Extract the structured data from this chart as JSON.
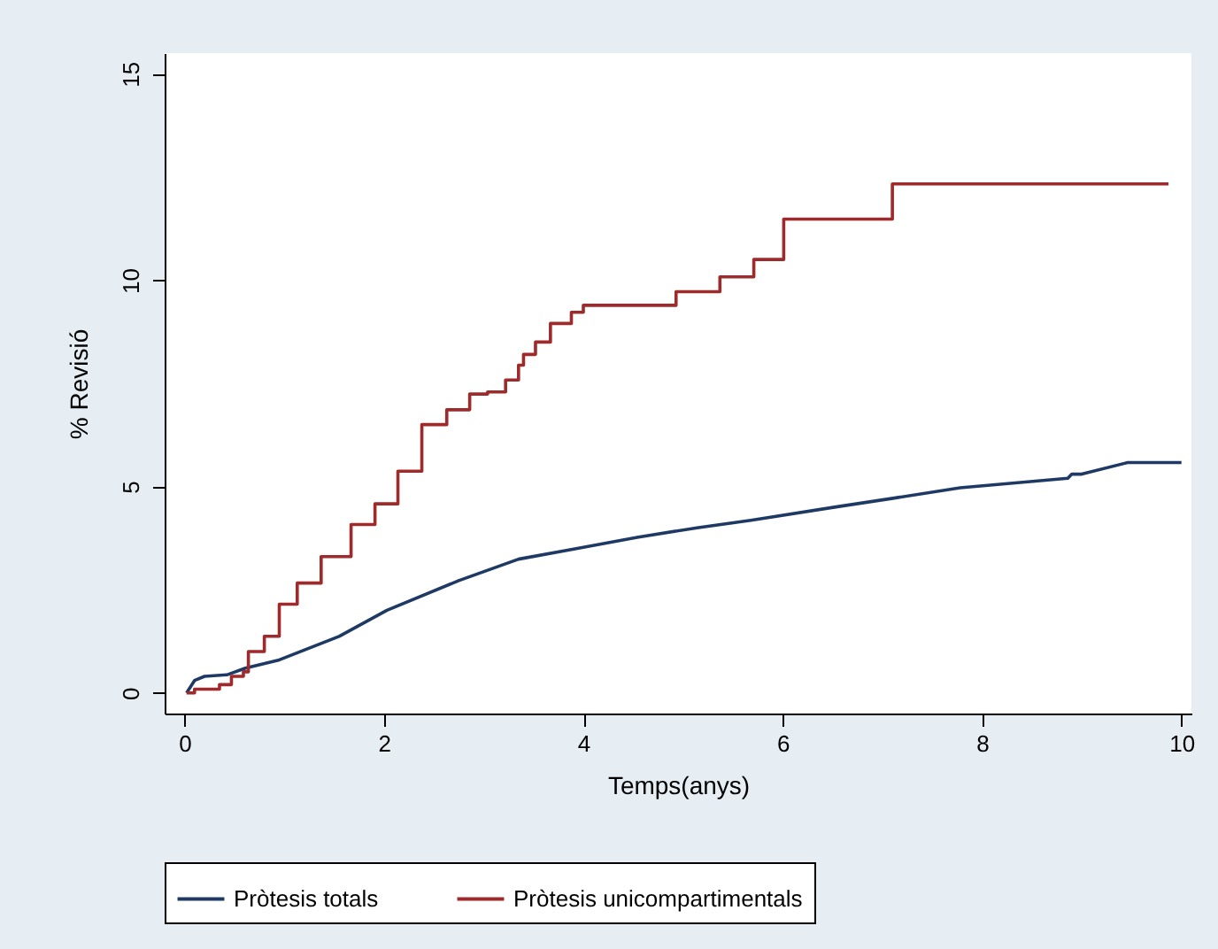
{
  "chart_data": {
    "type": "step",
    "xlabel": "Temps(anys)",
    "ylabel": "% Revisió",
    "xlim": [
      -0.2,
      10.1
    ],
    "ylim": [
      -0.5,
      15.5
    ],
    "xticks": [
      0,
      2,
      4,
      6,
      8,
      10
    ],
    "yticks": [
      0,
      5,
      10,
      15
    ],
    "grid": false,
    "legend": "bottom",
    "line_style": "solid",
    "marker": "none",
    "series": [
      {
        "name": "Pròtesis totals",
        "type": "line",
        "color": "#1e3a64",
        "x": [
          0.02,
          0.1,
          0.2,
          0.43,
          0.61,
          0.95,
          1.55,
          2.03,
          2.75,
          3.35,
          3.94,
          4.54,
          5.14,
          5.68,
          6.52,
          7.12,
          7.78,
          8.86,
          8.9,
          9.0,
          9.46,
          10.0
        ],
        "values": [
          0,
          0.3,
          0.4,
          0.44,
          0.6,
          0.8,
          1.37,
          2.0,
          2.72,
          3.24,
          3.5,
          3.77,
          4.0,
          4.18,
          4.5,
          4.72,
          4.97,
          5.2,
          5.3,
          5.3,
          5.58,
          5.58
        ]
      },
      {
        "name": "Pròtesis unicompartimentals",
        "color": "#9e2a2b",
        "x": [
          0.02,
          0.1,
          0.35,
          0.47,
          0.59,
          0.64,
          0.8,
          0.95,
          1.13,
          1.37,
          1.67,
          1.91,
          2.14,
          2.38,
          2.63,
          2.86,
          3.04,
          3.22,
          3.35,
          3.4,
          3.52,
          3.67,
          3.88,
          4.0,
          4.93,
          5.37,
          5.71,
          6.01,
          7.1,
          9.87
        ],
        "values": [
          0,
          0.09,
          0.2,
          0.4,
          0.51,
          1.0,
          1.37,
          2.15,
          2.66,
          3.3,
          4.08,
          4.58,
          5.37,
          6.5,
          6.86,
          7.24,
          7.29,
          7.58,
          7.94,
          8.2,
          8.5,
          8.95,
          9.22,
          9.39,
          9.72,
          10.08,
          10.5,
          11.48,
          12.33,
          12.33
        ]
      }
    ]
  }
}
